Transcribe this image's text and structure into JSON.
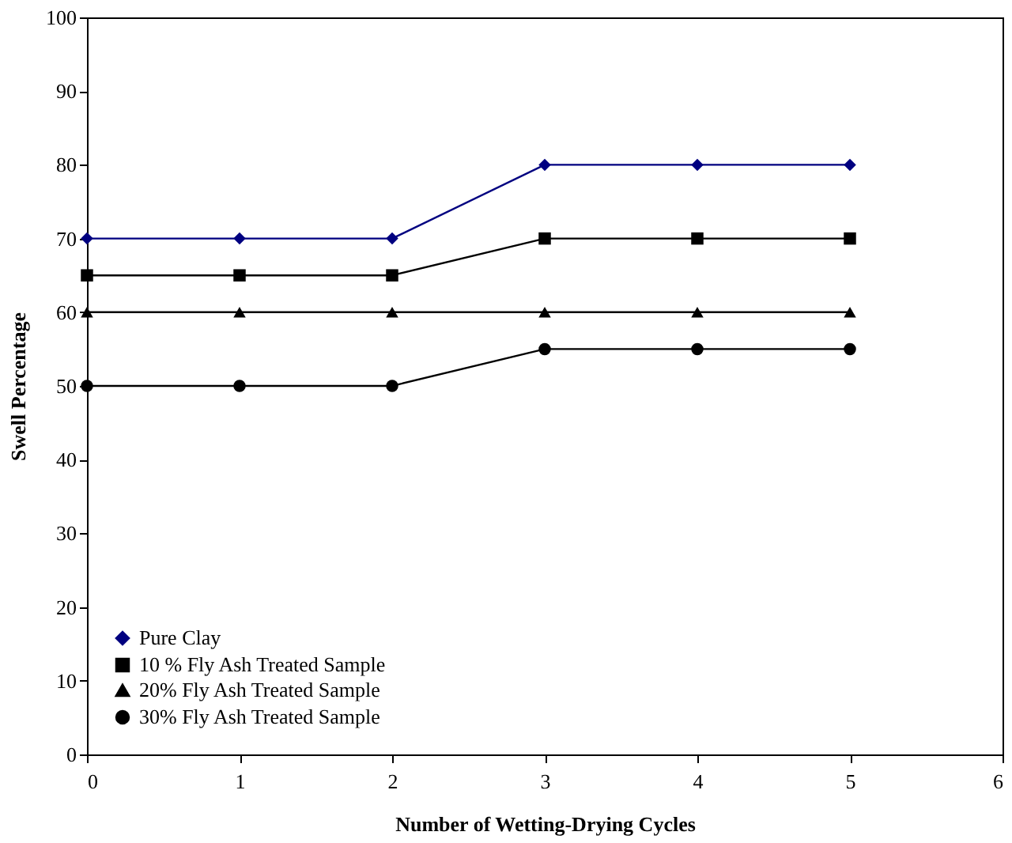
{
  "chart_data": {
    "type": "line",
    "xlabel": "Number of Wetting-Drying Cycles",
    "ylabel": "Swell Percentage",
    "x": [
      0,
      1,
      2,
      3,
      4,
      5
    ],
    "series": [
      {
        "name": "Pure Clay",
        "color": "#000080",
        "marker": "diamond",
        "values": [
          70,
          70,
          70,
          80,
          80,
          80
        ]
      },
      {
        "name": "10 % Fly Ash Treated Sample",
        "color": "#000000",
        "marker": "square",
        "values": [
          65,
          65,
          65,
          70,
          70,
          70
        ]
      },
      {
        "name": "20% Fly Ash Treated Sample",
        "color": "#000000",
        "marker": "triangle",
        "values": [
          60,
          60,
          60,
          60,
          60,
          60
        ]
      },
      {
        "name": "30% Fly Ash Treated Sample",
        "color": "#000000",
        "marker": "circle",
        "values": [
          50,
          50,
          50,
          55,
          55,
          55
        ]
      }
    ],
    "xlim": [
      0,
      6
    ],
    "xticks": [
      0,
      1,
      2,
      3,
      4,
      5,
      6
    ],
    "ylim": [
      0,
      100
    ],
    "yticks": [
      0,
      10,
      20,
      30,
      40,
      50,
      60,
      70,
      80,
      90,
      100
    ],
    "grid": false,
    "legend": "bottom left",
    "line_style": "solid"
  }
}
